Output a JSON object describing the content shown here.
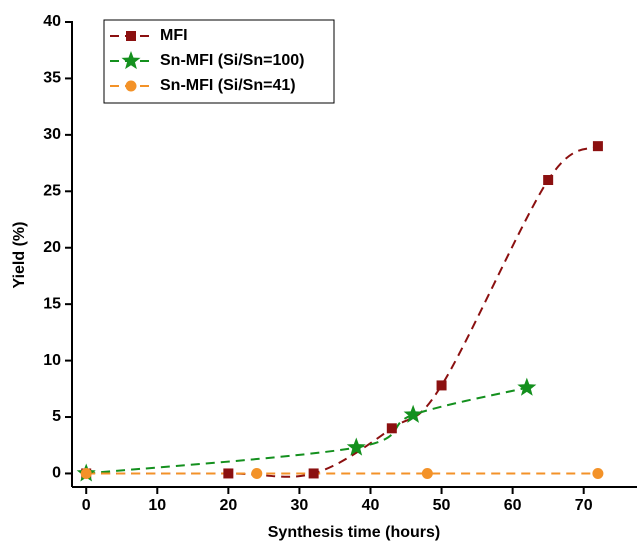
{
  "chart_data": {
    "type": "line",
    "x_label": "Synthesis time (hours)",
    "y_label": "Yield (%)",
    "xlim": [
      -2,
      77.5
    ],
    "ylim": [
      -1.2,
      40
    ],
    "xticks": [
      0,
      10,
      20,
      30,
      40,
      50,
      60,
      70
    ],
    "yticks": [
      0,
      5,
      10,
      15,
      20,
      25,
      30,
      35,
      40
    ],
    "legend": "upper left",
    "series": [
      {
        "name": "MFI",
        "color": "#8b1010",
        "marker": "square",
        "x": [
          0,
          20,
          32,
          43,
          50,
          65,
          72
        ],
        "values": [
          0,
          0,
          0,
          4,
          7.8,
          26,
          29
        ]
      },
      {
        "name": "Sn-MFI (Si/Sn=100)",
        "color": "#14901e",
        "marker": "star",
        "x": [
          0,
          38,
          46,
          62
        ],
        "values": [
          0,
          2.3,
          5.2,
          7.6
        ]
      },
      {
        "name": "Sn-MFI (Si/Sn=41)",
        "color": "#f39228",
        "marker": "circle",
        "x": [
          0,
          24,
          48,
          72
        ],
        "values": [
          0,
          0,
          0,
          0
        ]
      }
    ]
  }
}
